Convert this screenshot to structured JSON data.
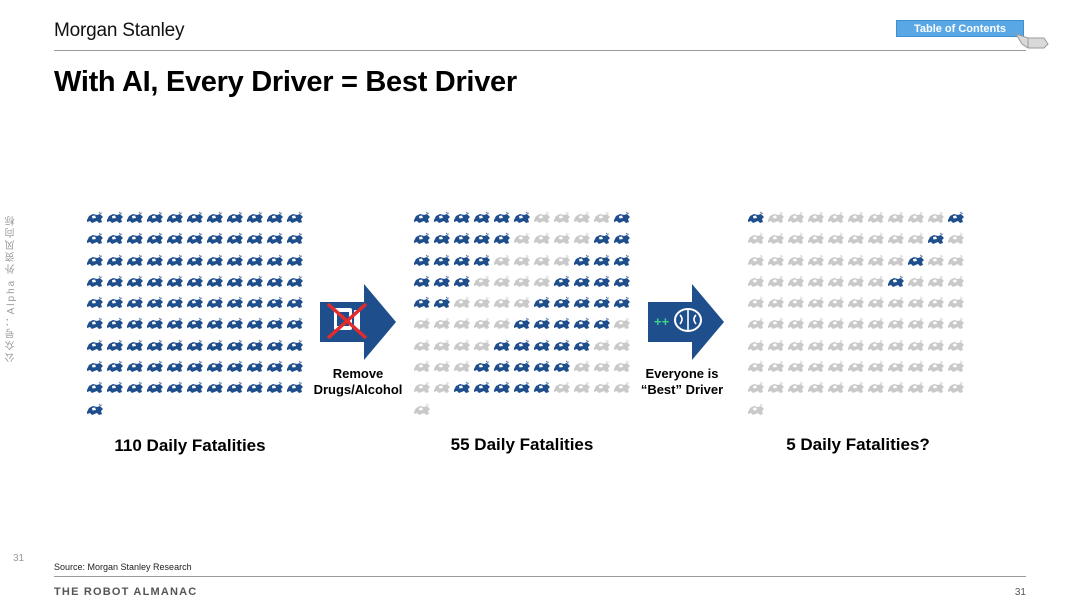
{
  "header": {
    "logo_text": "Morgan Stanley",
    "toc_label": "Table of Contents"
  },
  "slide": {
    "title": "With AI, Every Driver = Best Driver"
  },
  "watermark": {
    "side_text": "公众号：Alpha 外资风向标"
  },
  "panels": [
    {
      "label": "110 Daily Fatalities",
      "total_icons": 100,
      "highlighted_icons": 100
    },
    {
      "label": "55 Daily Fatalities",
      "total_icons": 100,
      "highlighted_icons": 55
    },
    {
      "label": "5 Daily Fatalities?",
      "total_icons": 100,
      "highlighted_icons": 5
    }
  ],
  "arrows": [
    {
      "label_line1": "Remove",
      "label_line2": "Drugs/Alcohol",
      "icon": "no-drinking-icon"
    },
    {
      "label_line1": "Everyone is",
      "label_line2": "“Best” Driver",
      "icon": "brain-plus-icon"
    }
  ],
  "colors": {
    "accent_blue": "#1f4e8c",
    "icon_highlight": "#1f4e8c",
    "icon_muted": "#c9c9c9",
    "no_symbol_red": "#e32b2b",
    "toc_blue": "#5aa7e6"
  },
  "footer": {
    "source": "Source: Morgan Stanley Research",
    "almanac": "THE ROBOT ALMANAC",
    "page_number": "31",
    "side_page_number": "31"
  }
}
